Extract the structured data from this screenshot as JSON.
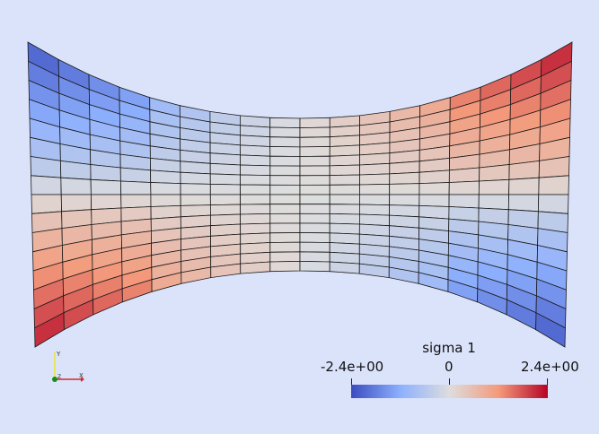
{
  "scalar_bar": {
    "title": "sigma 1",
    "min_label": "-2.4e+00",
    "mid_label": "0",
    "max_label": "2.4e+00",
    "colormap": [
      "#3b4cc0",
      "#8db0fe",
      "#dddddd",
      "#f49a7b",
      "#b40426"
    ]
  },
  "axes": {
    "x_color": "#d62728",
    "y_color": "#e8e830",
    "z_color": "#1a8a1a"
  },
  "mesh": {
    "columns": 18,
    "rows": 16,
    "line_color": "#1a1a1a"
  }
}
